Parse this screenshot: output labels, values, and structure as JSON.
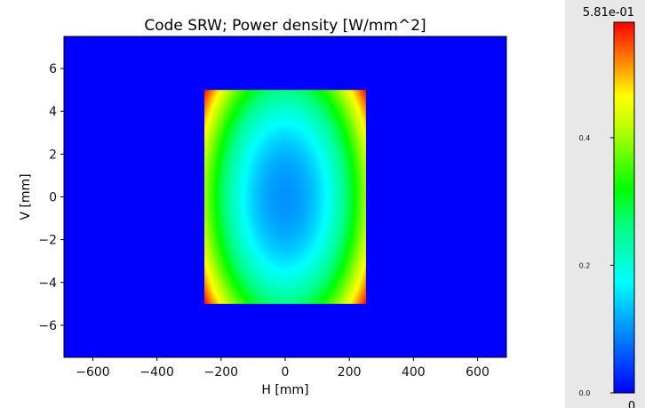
{
  "chart_data": {
    "type": "heatmap",
    "title": "Code SRW; Power density [W/mm^2]",
    "xlabel": "H [mm]",
    "ylabel": "V [mm]",
    "xlim": [
      -690,
      690
    ],
    "ylim": [
      -7.5,
      7.5
    ],
    "xticks": [
      -600,
      -400,
      -200,
      0,
      200,
      400,
      600
    ],
    "yticks": [
      -6,
      -4,
      -2,
      0,
      2,
      4,
      6
    ],
    "xtick_labels": [
      "−600",
      "−400",
      "−200",
      "0",
      "200",
      "400",
      "600"
    ],
    "ytick_labels": [
      "−6",
      "−4",
      "−2",
      "0",
      "2",
      "4",
      "6"
    ],
    "background_color": "#0000ff",
    "data_region": {
      "h_range": [
        -252,
        252
      ],
      "v_range": [
        -5,
        5
      ],
      "min_value": 0.0,
      "max_value": 0.581,
      "description_values": {
        "center": 0.1,
        "corners": 0.581
      }
    },
    "colormap": "gist_rainbow_r",
    "colorbar": {
      "max_label": "5.81e-01",
      "min_label": "0",
      "ticks": [
        0.0,
        0.2,
        0.4
      ],
      "tick_labels": [
        "0.0",
        "0.2",
        "0.4"
      ],
      "range": [
        0,
        0.581
      ]
    }
  }
}
